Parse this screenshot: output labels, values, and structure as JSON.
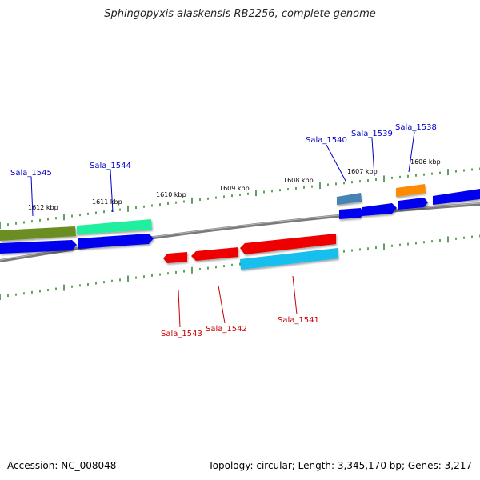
{
  "title": "Sphingopyxis alaskensis RB2256, complete genome",
  "footer": {
    "accession": "Accession: NC_008048",
    "summary": "Topology: circular; Length: 3,345,170 bp; Genes: 3,217"
  },
  "colors": {
    "backbone": "#808080",
    "tick": "#1a7a1a",
    "forward_label": "#0000c8",
    "reverse_label": "#c80000",
    "cds_blue": "#0000ee",
    "gene_red": "#ee0000",
    "gene_olive": "#6b8e23",
    "gene_aqua": "#22eea0",
    "gene_sky": "#19bfee",
    "gene_steel": "#4682b4",
    "gene_orange": "#ff8c00"
  },
  "kbp_labels": [
    "1606 kbp",
    "1607 kbp",
    "1608 kbp",
    "1609 kbp",
    "1610 kbp",
    "1611 kbp",
    "1612 kbp"
  ],
  "forward_genes": [
    "Sala_1538",
    "Sala_1539",
    "Sala_1540",
    "Sala_1544",
    "Sala_1545"
  ],
  "reverse_genes": [
    "Sala_1541",
    "Sala_1542",
    "Sala_1543"
  ]
}
